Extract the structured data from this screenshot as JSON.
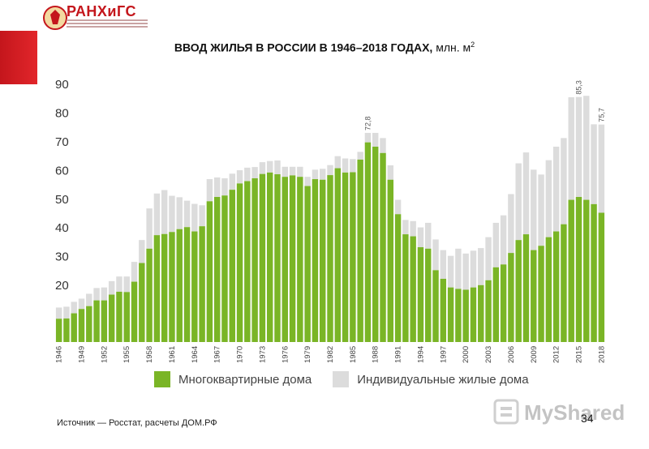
{
  "header": {
    "logo_text": "РАНХиГС",
    "title_main": "ВВОД ЖИЛЬЯ В РОССИИ В 1946–2018 ГОДАХ,",
    "title_unit": " млн. м",
    "title_sup": "2"
  },
  "colors": {
    "multi": "#7ab526",
    "individual": "#dcdcdc",
    "brand_red": "#c4161c"
  },
  "chart_data": {
    "type": "bar",
    "stacked": true,
    "ylim": [
      0,
      100
    ],
    "yticks": [
      "20",
      "30",
      "40",
      "50",
      "60",
      "70",
      "80",
      "90"
    ],
    "ytick_values": [
      20,
      30,
      40,
      50,
      60,
      70,
      80,
      90
    ],
    "grid": false,
    "legend_position": "bottom",
    "x": [
      1946,
      1947,
      1948,
      1949,
      1950,
      1951,
      1952,
      1953,
      1954,
      1955,
      1956,
      1957,
      1958,
      1959,
      1960,
      1961,
      1962,
      1963,
      1964,
      1965,
      1966,
      1967,
      1968,
      1969,
      1970,
      1971,
      1972,
      1973,
      1974,
      1975,
      1976,
      1977,
      1978,
      1979,
      1980,
      1981,
      1982,
      1983,
      1984,
      1985,
      1986,
      1987,
      1988,
      1989,
      1990,
      1991,
      1992,
      1993,
      1994,
      1995,
      1996,
      1997,
      1998,
      1999,
      2000,
      2001,
      2002,
      2003,
      2004,
      2005,
      2006,
      2007,
      2008,
      2009,
      2010,
      2011,
      2012,
      2013,
      2014,
      2015,
      2016,
      2017,
      2018
    ],
    "xtick_labels": [
      "1946",
      "1949",
      "1952",
      "1955",
      "1958",
      "1961",
      "1964",
      "1967",
      "1970",
      "1973",
      "1976",
      "1979",
      "1982",
      "1985",
      "1988",
      "1991",
      "1994",
      "1997",
      "2000",
      "2003",
      "2006",
      "2009",
      "2012",
      "2015",
      "2018"
    ],
    "series": [
      {
        "name": "Многоквартирные дома",
        "values": [
          8.1,
          8.2,
          10.0,
          11.5,
          12.5,
          14.5,
          14.5,
          16.5,
          17.5,
          17.4,
          21.0,
          27.5,
          32.5,
          37.2,
          37.6,
          38.3,
          39.3,
          40.0,
          38.5,
          40.3,
          49.0,
          50.5,
          51.0,
          53.0,
          55.2,
          56.0,
          57.0,
          58.5,
          59.0,
          58.4,
          57.5,
          58.0,
          57.5,
          54.3,
          56.7,
          56.5,
          58.1,
          60.5,
          59.0,
          59.1,
          63.5,
          69.5,
          68.0,
          65.8,
          56.5,
          44.5,
          37.5,
          36.8,
          33.0,
          32.5,
          25.0,
          22.0,
          19.0,
          18.5,
          18.2,
          19.0,
          19.8,
          21.5,
          26.0,
          27.0,
          31.0,
          35.5,
          37.5,
          32.0,
          33.5,
          36.5,
          38.5,
          41.0,
          49.5,
          50.5,
          49.5,
          48.0,
          45.0
        ]
      },
      {
        "name": "Индивидуальные жилые дома",
        "values": [
          3.9,
          4.1,
          4.0,
          3.6,
          4.3,
          4.3,
          4.5,
          4.7,
          5.3,
          5.4,
          6.9,
          8.0,
          14.0,
          14.5,
          15.3,
          12.6,
          11.1,
          9.2,
          9.6,
          7.3,
          7.7,
          6.8,
          6.0,
          5.6,
          4.6,
          4.7,
          3.9,
          4.1,
          4.0,
          4.8,
          3.5,
          3.0,
          3.5,
          3.2,
          3.3,
          3.8,
          3.5,
          4.2,
          4.9,
          4.6,
          2.7,
          3.3,
          4.8,
          5.2,
          5.0,
          5.0,
          5.0,
          5.3,
          6.9,
          9.0,
          10.7,
          10.0,
          11.0,
          14.0,
          12.6,
          12.8,
          12.9,
          15.0,
          15.5,
          17.1,
          20.5,
          26.7,
          28.5,
          28.0,
          24.8,
          26.8,
          29.5,
          30.0,
          35.7,
          34.8,
          36.2,
          27.8,
          30.7
        ]
      }
    ],
    "annotations": [
      {
        "year": 1987,
        "label": "72,8"
      },
      {
        "year": 2015,
        "label": "85,3"
      },
      {
        "year": 2018,
        "label": "75,7"
      }
    ]
  },
  "footer": {
    "source": "Источник — Росстат, расчеты ДОМ.РФ",
    "page_number": "34",
    "watermark": "MyShared"
  }
}
